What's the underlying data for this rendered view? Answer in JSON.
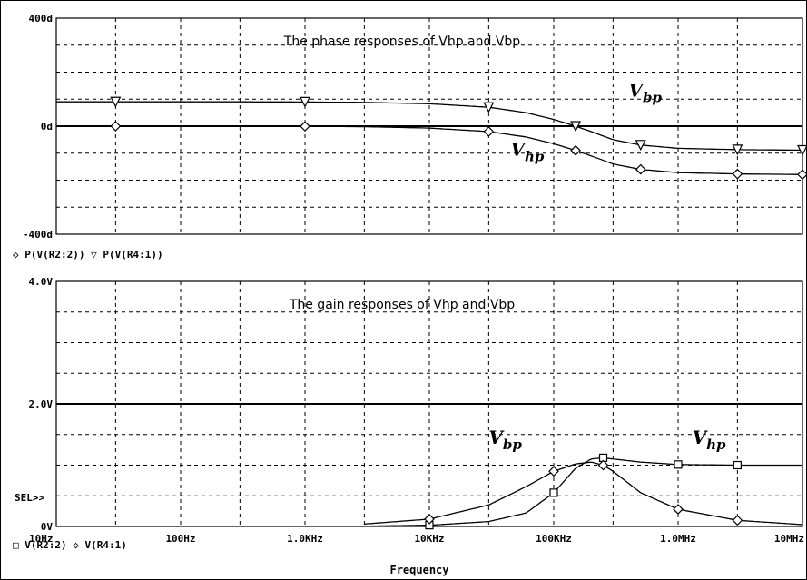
{
  "x_axis": {
    "label": "Frequency",
    "ticks": [
      "10Hz",
      "100Hz",
      "1.0KHz",
      "10KHz",
      "100KHz",
      "1.0MHz",
      "10MHz"
    ]
  },
  "sel_marker": "SEL>>",
  "chart_data": [
    {
      "type": "line",
      "title": "The phase responses of Vhp and Vbp",
      "xscale": "log",
      "xlim": [
        10,
        10000000
      ],
      "ylim": [
        -400,
        400
      ],
      "y_ticks": [
        "400d",
        "0d",
        "-400d"
      ],
      "grid": true,
      "legend_text": "◇ P(V(R2:2))  ▽ P(V(R4:1))",
      "series": [
        {
          "name": "P(V(R2:2))",
          "marker": "diamond",
          "x": [
            10,
            30,
            100,
            300,
            1000,
            3000,
            10000,
            30000,
            60000,
            100000,
            150000,
            200000,
            300000,
            500000,
            1000000,
            3000000,
            10000000
          ],
          "y": [
            0,
            0,
            0,
            0,
            -0.5,
            -2,
            -7,
            -20,
            -40,
            -65,
            -90,
            -110,
            -140,
            -160,
            -172,
            -177,
            -179
          ]
        },
        {
          "name": "P(V(R4:1))",
          "marker": "triangle-down",
          "x": [
            10,
            30,
            100,
            300,
            1000,
            3000,
            10000,
            30000,
            60000,
            100000,
            150000,
            200000,
            300000,
            500000,
            1000000,
            3000000,
            10000000
          ],
          "y": [
            90,
            90,
            90,
            90,
            89.5,
            88,
            83,
            70,
            50,
            25,
            0,
            -20,
            -50,
            -70,
            -82,
            -87,
            -89
          ]
        }
      ],
      "annotations": [
        {
          "text": "V",
          "subscript": "bp",
          "x": 400000,
          "y": 110
        },
        {
          "text": "V",
          "subscript": "hp",
          "x": 45000,
          "y": -110
        }
      ]
    },
    {
      "type": "line",
      "title": "The gain responses of Vhp and Vbp",
      "xscale": "log",
      "xlim": [
        10,
        10000000
      ],
      "ylim": [
        0,
        4.0
      ],
      "y_ticks": [
        "4.0V",
        "2.0V",
        "0V"
      ],
      "grid": true,
      "legend_text": "□ V(R2:2)  ◇ V(R4:1)",
      "series": [
        {
          "name": "V(R2:2)",
          "marker": "square",
          "x": [
            3000,
            10000,
            30000,
            60000,
            100000,
            150000,
            200000,
            250000,
            300000,
            500000,
            1000000,
            3000000,
            10000000
          ],
          "y": [
            0.005,
            0.02,
            0.08,
            0.22,
            0.55,
            0.95,
            1.1,
            1.12,
            1.1,
            1.05,
            1.01,
            1.0,
            1.0
          ]
        },
        {
          "name": "V(R4:1)",
          "marker": "diamond",
          "x": [
            3000,
            10000,
            30000,
            60000,
            100000,
            150000,
            200000,
            250000,
            300000,
            500000,
            1000000,
            3000000,
            10000000
          ],
          "y": [
            0.04,
            0.12,
            0.35,
            0.65,
            0.9,
            1.02,
            1.05,
            1.0,
            0.9,
            0.55,
            0.28,
            0.1,
            0.03
          ]
        }
      ],
      "annotations": [
        {
          "text": "V",
          "subscript": "bp",
          "x": 30000,
          "y": 1.35
        },
        {
          "text": "V",
          "subscript": "hp",
          "x": 1300000,
          "y": 1.35
        }
      ]
    }
  ],
  "colors": {
    "background": "#ffffff",
    "ink": "#000000"
  }
}
